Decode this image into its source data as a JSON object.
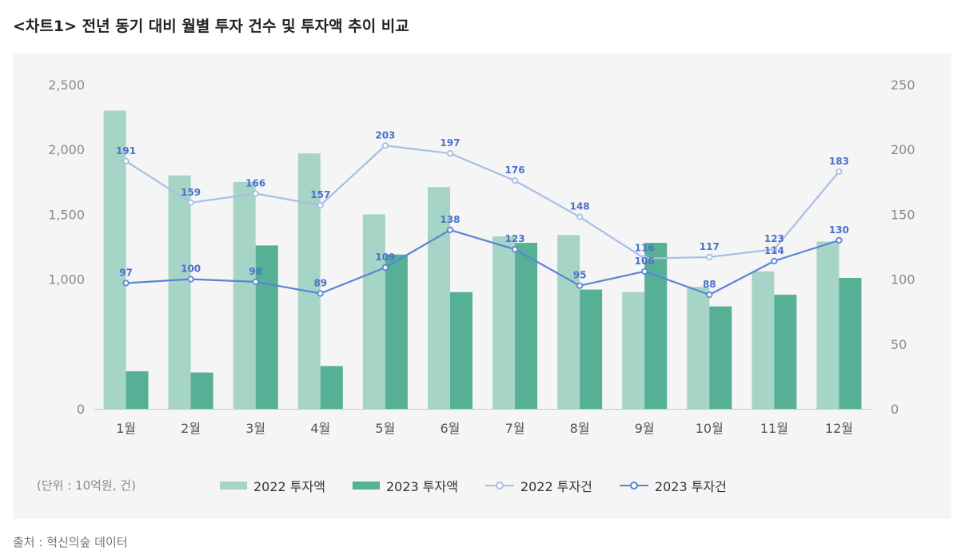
{
  "title": "<차트1>  전년 동기 대비 월별 투자 건수 및 투자액 추이 비교",
  "unit_note": "(단위 : 10억원, 건)",
  "source": "출처 : 혁신의숲 데이터",
  "colors": {
    "bar_2022": "#a6d4c6",
    "bar_2023": "#55b095",
    "line_2022": "#a7bfe6",
    "line_2023": "#5b84d8",
    "label": "#4a72cc"
  },
  "legend": [
    {
      "label": "2022 투자액",
      "kind": "bar",
      "color": "#a6d4c6"
    },
    {
      "label": "2023 투자액",
      "kind": "bar",
      "color": "#55b095"
    },
    {
      "label": "2022 투자건",
      "kind": "line",
      "color": "#a7bfe6"
    },
    {
      "label": "2023 투자건",
      "kind": "line",
      "color": "#5b84d8"
    }
  ],
  "chart_data": {
    "type": "bar",
    "categories": [
      "1월",
      "2월",
      "3월",
      "4월",
      "5월",
      "6월",
      "7월",
      "8월",
      "9월",
      "10월",
      "11월",
      "12월"
    ],
    "y_left": {
      "min": 0,
      "max": 2500,
      "ticks": [
        "0",
        "1,000",
        "1,500",
        "2,000",
        "2,500"
      ],
      "tick_values": [
        0,
        1000,
        1500,
        2000,
        2500
      ]
    },
    "y_right": {
      "min": 0,
      "max": 250,
      "ticks": [
        "0",
        "50",
        "100",
        "150",
        "200",
        "250"
      ],
      "tick_values": [
        0,
        50,
        100,
        150,
        200,
        250
      ]
    },
    "bars": [
      {
        "name": "2022 투자액",
        "values": [
          2300,
          1800,
          1750,
          1970,
          1500,
          1710,
          1330,
          1340,
          900,
          940,
          1060,
          1290
        ]
      },
      {
        "name": "2023 투자액",
        "values": [
          290,
          280,
          1260,
          330,
          1190,
          900,
          1280,
          920,
          1280,
          790,
          880,
          1010
        ]
      }
    ],
    "lines": [
      {
        "name": "2022 투자건",
        "values": [
          191,
          159,
          166,
          157,
          203,
          197,
          176,
          148,
          116,
          117,
          123,
          183
        ]
      },
      {
        "name": "2023 투자건",
        "values": [
          97,
          100,
          98,
          89,
          109,
          138,
          123,
          95,
          106,
          88,
          114,
          130
        ]
      }
    ]
  }
}
